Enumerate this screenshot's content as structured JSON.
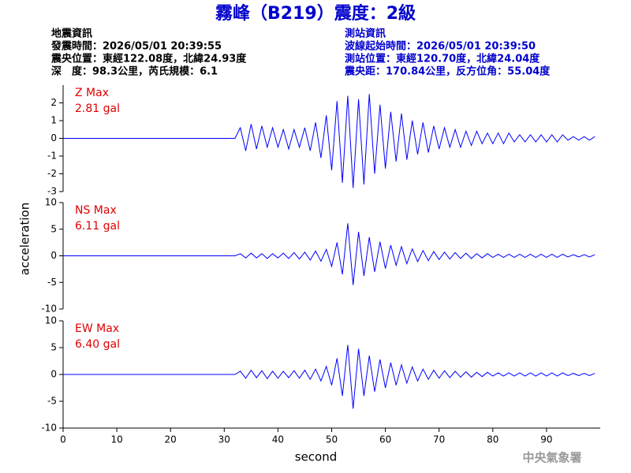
{
  "header": {
    "title": "霧峰（B219）震度：2級",
    "event": [
      "地震資訊",
      "發震時間：2026/05/01 20:39:55",
      "震央位置：東經122.08度，北緯24.93度",
      "深　度：98.3公里，芮氏規模：6.1"
    ],
    "station": [
      "測站資訊",
      "波線起始時間：2026/05/01 20:39:50",
      "測站位置：東經120.70度，北緯24.04度",
      "震央距：170.84公里，反方位角：55.04度"
    ]
  },
  "chart_data": {
    "type": "line",
    "xlabel": "second",
    "ylabel": "acceleration",
    "xlim": [
      0,
      100
    ],
    "xticks": [
      0,
      10,
      20,
      30,
      40,
      50,
      60,
      70,
      80,
      90
    ],
    "x": [
      0,
      1,
      2,
      3,
      4,
      5,
      6,
      7,
      8,
      9,
      10,
      11,
      12,
      13,
      14,
      15,
      16,
      17,
      18,
      19,
      20,
      21,
      22,
      23,
      24,
      25,
      26,
      27,
      28,
      29,
      30,
      31,
      32,
      33,
      34,
      35,
      36,
      37,
      38,
      39,
      40,
      41,
      42,
      43,
      44,
      45,
      46,
      47,
      48,
      49,
      50,
      51,
      52,
      53,
      54,
      55,
      56,
      57,
      58,
      59,
      60,
      61,
      62,
      63,
      64,
      65,
      66,
      67,
      68,
      69,
      70,
      71,
      72,
      73,
      74,
      75,
      76,
      77,
      78,
      79,
      80,
      81,
      82,
      83,
      84,
      85,
      86,
      87,
      88,
      89,
      90,
      91,
      92,
      93,
      94,
      95,
      96,
      97,
      98,
      99
    ],
    "series": [
      {
        "name": "Z Max",
        "max_label": "2.81 gal",
        "color": "#0000ff",
        "ylim": [
          -3,
          3
        ],
        "yticks": [
          -3,
          -2,
          -1,
          0,
          1,
          2
        ],
        "values": [
          0,
          0,
          0,
          0,
          0,
          0,
          0,
          0,
          0,
          0,
          0,
          0,
          0,
          0,
          0,
          0,
          0,
          0,
          0,
          0,
          0,
          0,
          0,
          0,
          0,
          0,
          0,
          0,
          0,
          0,
          0,
          0,
          0,
          0.6,
          -0.7,
          0.8,
          -0.6,
          0.7,
          -0.5,
          0.6,
          -0.5,
          0.5,
          -0.6,
          0.5,
          -0.5,
          0.6,
          -0.7,
          0.9,
          -1.1,
          1.3,
          -1.8,
          2.1,
          -2.5,
          2.4,
          -2.8,
          2.2,
          -2.6,
          2.5,
          -2.0,
          1.9,
          -1.7,
          1.5,
          -1.3,
          1.4,
          -1.2,
          1.0,
          -0.9,
          0.9,
          -0.8,
          0.7,
          -0.6,
          0.6,
          -0.5,
          0.5,
          -0.5,
          0.4,
          -0.4,
          0.4,
          -0.3,
          0.3,
          -0.3,
          0.3,
          -0.3,
          0.3,
          -0.2,
          0.2,
          -0.2,
          0.2,
          -0.2,
          0.2,
          -0.2,
          0.2,
          -0.2,
          0.2,
          -0.1,
          0.1,
          -0.1,
          0.1,
          -0.1,
          0.1
        ]
      },
      {
        "name": "NS Max",
        "max_label": "6.11 gal",
        "color": "#0000ff",
        "ylim": [
          -10,
          10
        ],
        "yticks": [
          -10,
          -5,
          0,
          5,
          10
        ],
        "values": [
          0,
          0,
          0,
          0,
          0,
          0,
          0,
          0,
          0,
          0,
          0,
          0,
          0,
          0,
          0,
          0,
          0,
          0,
          0,
          0,
          0,
          0,
          0,
          0,
          0,
          0,
          0,
          0,
          0,
          0,
          0,
          0,
          0,
          0.4,
          -0.4,
          0.5,
          -0.4,
          0.4,
          -0.5,
          0.4,
          -0.4,
          0.5,
          -0.5,
          0.6,
          -0.6,
          0.7,
          -0.8,
          0.9,
          -1.0,
          1.2,
          -2.0,
          2.5,
          -3.5,
          6.1,
          -5.5,
          4.5,
          -3.8,
          3.5,
          -3.0,
          2.6,
          -2.4,
          2.0,
          -1.8,
          1.7,
          -1.5,
          1.3,
          -1.1,
          1.0,
          -0.9,
          0.8,
          -0.7,
          0.7,
          -0.6,
          0.6,
          -0.5,
          0.5,
          -0.5,
          0.4,
          -0.4,
          0.4,
          -0.3,
          0.3,
          -0.3,
          0.3,
          -0.3,
          0.3,
          -0.3,
          0.3,
          -0.3,
          0.3,
          -0.3,
          0.3,
          -0.3,
          0.3,
          -0.2,
          0.2,
          -0.2,
          0.2,
          -0.2,
          0.2
        ]
      },
      {
        "name": "EW Max",
        "max_label": "6.40 gal",
        "color": "#0000ff",
        "ylim": [
          -10,
          10
        ],
        "yticks": [
          -10,
          -5,
          0,
          5,
          10
        ],
        "values": [
          0,
          0,
          0,
          0,
          0,
          0,
          0,
          0,
          0,
          0,
          0,
          0,
          0,
          0,
          0,
          0,
          0,
          0,
          0,
          0,
          0,
          0,
          0,
          0,
          0,
          0,
          0,
          0,
          0,
          0,
          0,
          0,
          0,
          0.6,
          -0.7,
          0.8,
          -0.6,
          0.7,
          -0.8,
          0.6,
          -0.7,
          0.6,
          -0.6,
          0.7,
          -0.7,
          0.8,
          -0.9,
          1.0,
          -1.2,
          1.5,
          -2.0,
          3.0,
          -4.0,
          5.5,
          -6.4,
          4.8,
          -4.0,
          3.5,
          -3.2,
          2.8,
          -2.5,
          2.2,
          -2.0,
          1.8,
          -1.6,
          1.4,
          -1.2,
          1.0,
          -0.9,
          0.8,
          -0.7,
          0.7,
          -0.6,
          0.6,
          -0.5,
          0.5,
          -0.5,
          0.4,
          -0.4,
          0.4,
          -0.3,
          0.3,
          -0.3,
          0.3,
          -0.3,
          0.3,
          -0.3,
          0.3,
          -0.3,
          0.3,
          -0.3,
          0.3,
          -0.3,
          0.3,
          -0.2,
          0.2,
          -0.2,
          0.2,
          -0.2,
          0.2
        ]
      }
    ]
  },
  "footer": "中央氣象署"
}
